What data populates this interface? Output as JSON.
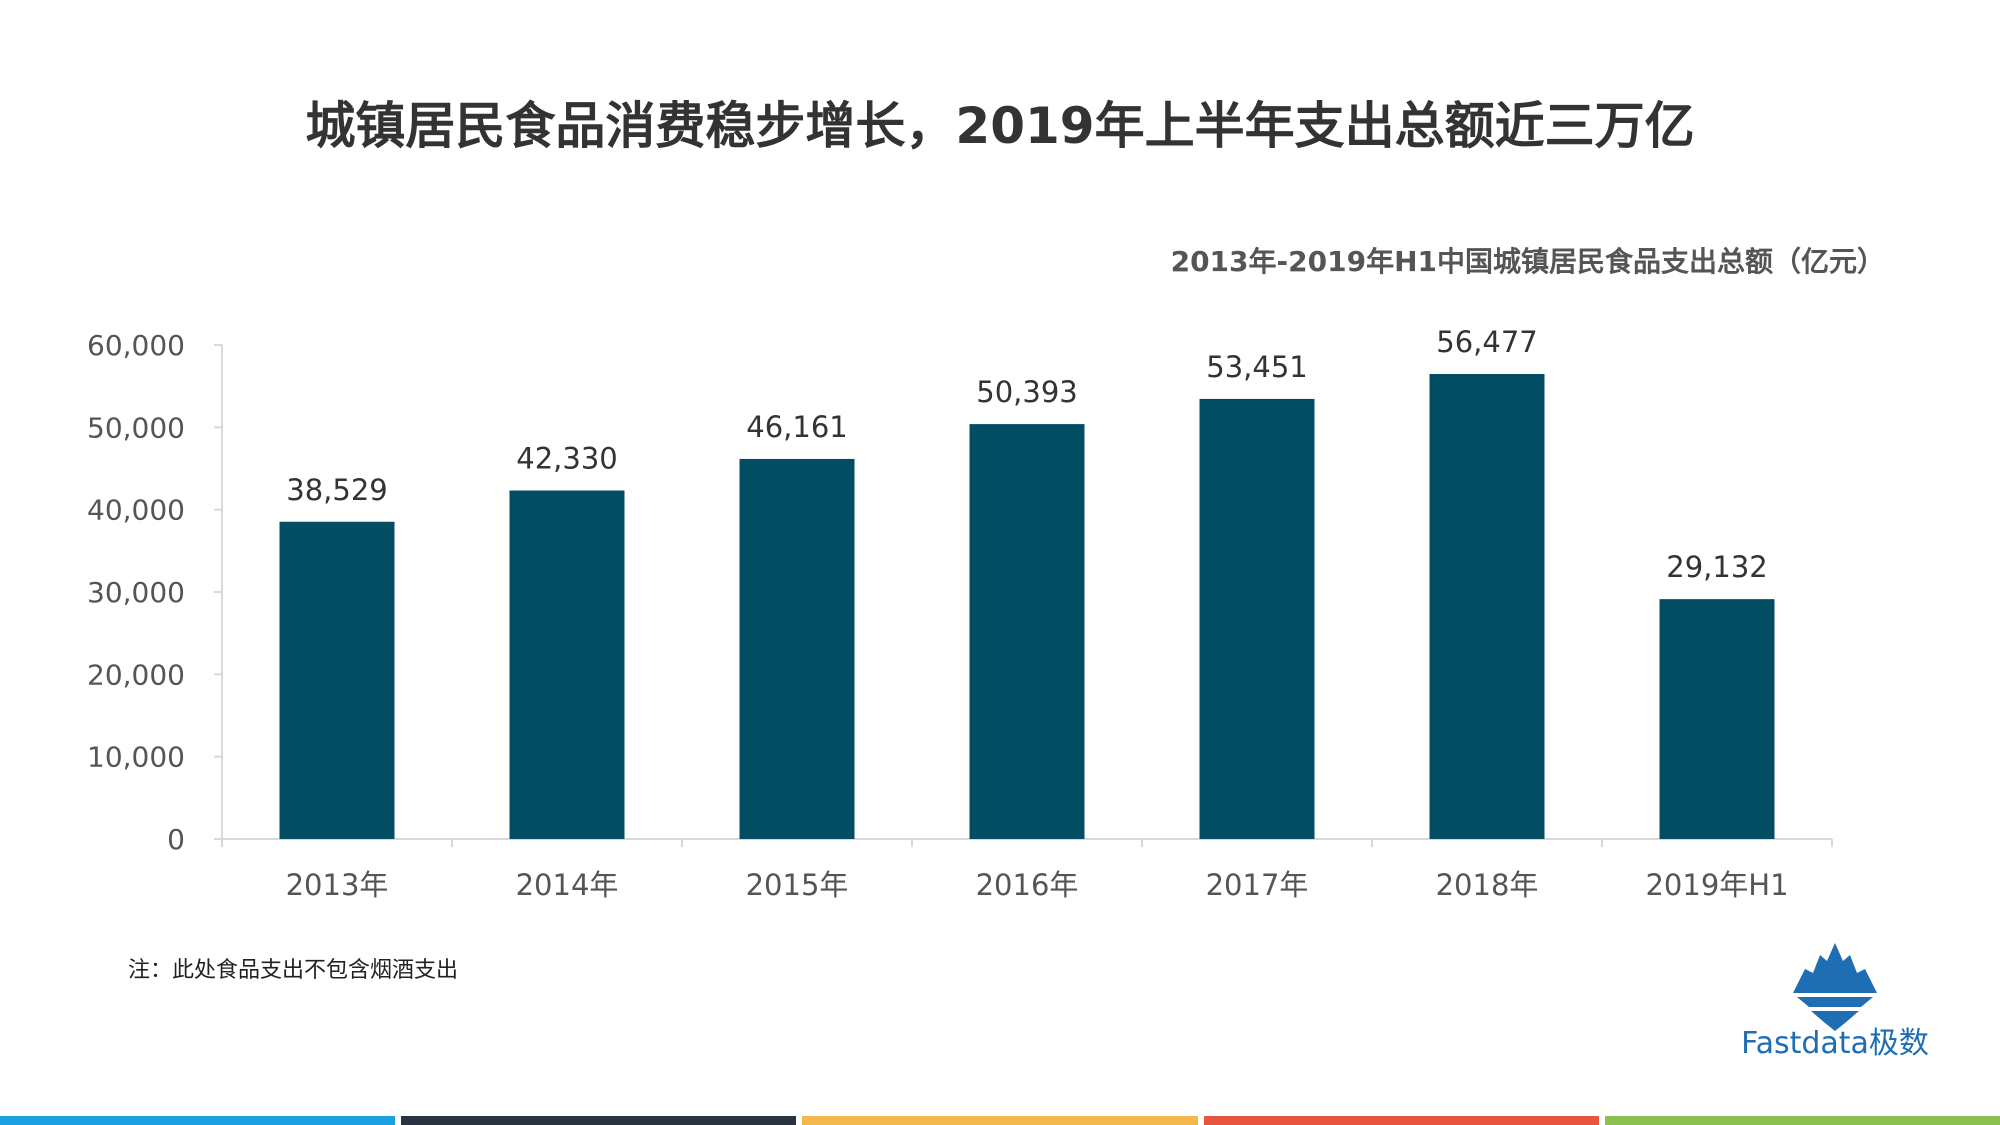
{
  "page": {
    "title": "城镇居民食品消费稳步增长，2019年上半年支出总额近三万亿",
    "note": "注：此处食品支出不包含烟酒支出"
  },
  "logo": {
    "text": "Fastdata极数",
    "color": "#1f6db3"
  },
  "footer_colors": [
    "#1ba1e2",
    "#2a3440",
    "#f2b84b",
    "#e8553e",
    "#8cc152"
  ],
  "chart_data": {
    "type": "bar",
    "title": "2013年-2019年H1中国城镇居民食品支出总额（亿元）",
    "categories": [
      "2013年",
      "2014年",
      "2015年",
      "2016年",
      "2017年",
      "2018年",
      "2019年H1"
    ],
    "values": [
      38529,
      42330,
      46161,
      50393,
      53451,
      56477,
      29132
    ],
    "value_labels": [
      "38,529",
      "42,330",
      "46,161",
      "50,393",
      "53,451",
      "56,477",
      "29,132"
    ],
    "yticks": [
      0,
      10000,
      20000,
      30000,
      40000,
      50000,
      60000
    ],
    "ytick_labels": [
      "0",
      "10,000",
      "20,000",
      "30,000",
      "40,000",
      "50,000",
      "60,000"
    ],
    "ylim": [
      0,
      60000
    ],
    "xlabel": "",
    "ylabel": "",
    "grid": false,
    "bar_color": "#034d63"
  }
}
